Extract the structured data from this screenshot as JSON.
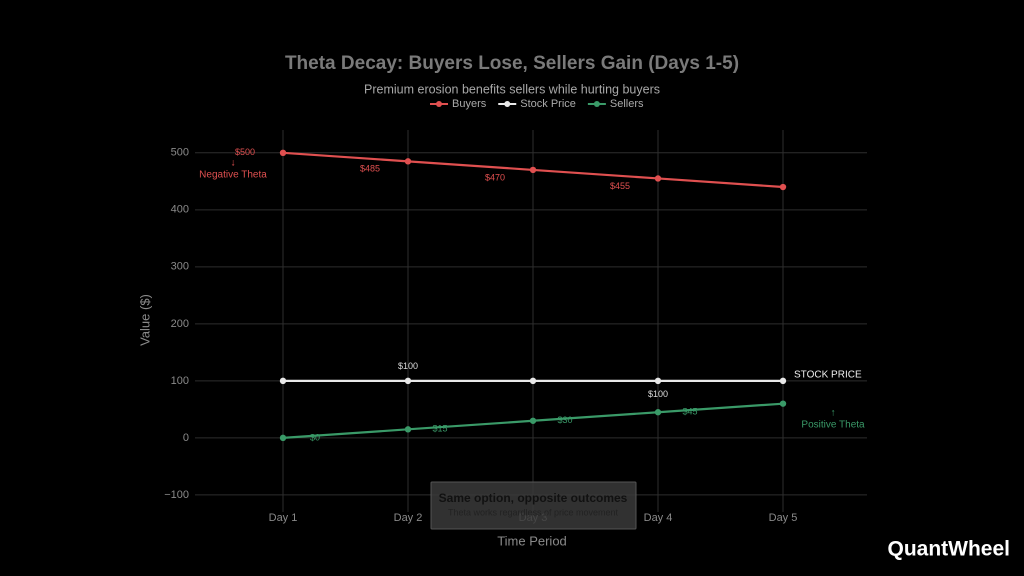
{
  "chart_data": {
    "type": "line",
    "title": "Theta Decay: Buyers Lose, Sellers Gain (Days 1-5)",
    "subtitle": "Premium erosion benefits sellers while hurting buyers",
    "x_label": "Time Period",
    "y_label": "Value ($)",
    "categories": [
      "Day 1",
      "Day 2",
      "Day 3",
      "Day 4",
      "Day 5"
    ],
    "series": [
      {
        "name": "Buyers",
        "color": "#e05050",
        "values": [
          500,
          485,
          470,
          455,
          440
        ],
        "value_labels": [
          "$500",
          "$485",
          "$470",
          "$455",
          null
        ]
      },
      {
        "name": "Stock Price",
        "color": "#e8e8e8",
        "values": [
          100,
          100,
          100,
          100,
          100
        ],
        "value_labels": [
          null,
          "$100",
          null,
          "$100",
          null
        ]
      },
      {
        "name": "Sellers",
        "color": "#3a9a68",
        "values": [
          0,
          15,
          30,
          45,
          60
        ],
        "value_labels": [
          "$0",
          "$15",
          "$30",
          "$45",
          null
        ]
      }
    ],
    "ylim": [
      -130,
      540
    ],
    "yticks": [
      {
        "value": -100,
        "label": "−100"
      },
      0,
      100,
      200,
      300,
      400,
      500
    ],
    "grid": true,
    "annotations": [
      "↓",
      "Negative Theta",
      "STOCK PRICE",
      "↑",
      "Positive Theta"
    ],
    "callout": {
      "title": "Same option, opposite outcomes",
      "subtitle": "Theta works regardless of price movement"
    },
    "brand": "QuantWheel"
  }
}
